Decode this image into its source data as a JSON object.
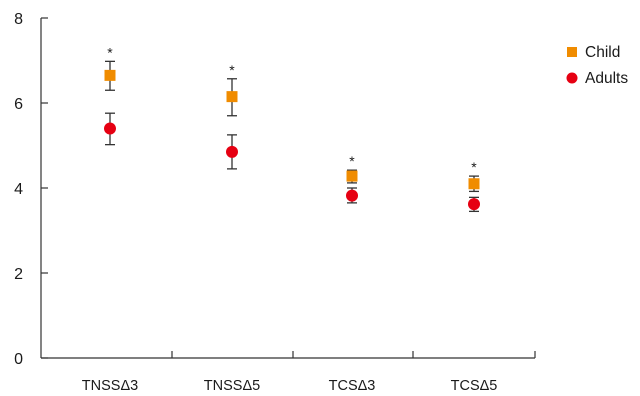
{
  "chart_data": {
    "type": "scatter",
    "categories": [
      "TNSSΔ3",
      "TNSSΔ5",
      "TCSΔ3",
      "TCSΔ5"
    ],
    "ylim": [
      0,
      8
    ],
    "yticks": [
      0,
      2,
      4,
      6,
      8
    ],
    "grid": false,
    "legend_position": "top-right",
    "series": [
      {
        "name": "Child",
        "marker": "square",
        "color": "#f08c00",
        "values": [
          6.65,
          6.15,
          4.28,
          4.1
        ],
        "err_low": [
          6.3,
          5.7,
          4.12,
          3.92
        ],
        "err_high": [
          6.98,
          6.57,
          4.42,
          4.28
        ]
      },
      {
        "name": "Adults",
        "marker": "circle",
        "color": "#e60012",
        "values": [
          5.4,
          4.85,
          3.82,
          3.62
        ],
        "err_low": [
          5.02,
          4.45,
          3.65,
          3.45
        ],
        "err_high": [
          5.76,
          5.25,
          4.0,
          3.78
        ]
      }
    ],
    "annotations": [
      "*",
      "*",
      "*",
      "*"
    ]
  }
}
